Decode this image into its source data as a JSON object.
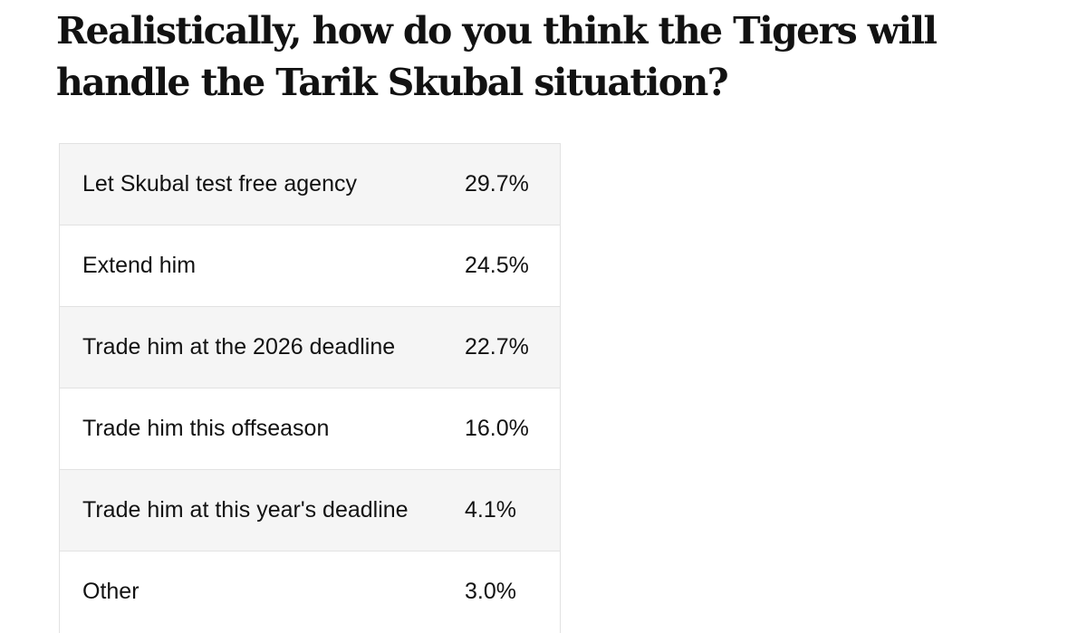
{
  "headline": "Realistically, how do you think the Tigers will handle the Tarik Skubal situation?",
  "chart_data": {
    "type": "table",
    "title": "Realistically, how do you think the Tigers will handle the Tarik Skubal situation?",
    "categories": [
      "Let Skubal test free agency",
      "Extend him",
      "Trade him at the 2026 deadline",
      "Trade him this offseason",
      "Trade him at this year's deadline",
      "Other"
    ],
    "values": [
      29.7,
      24.5,
      22.7,
      16.0,
      4.1,
      3.0
    ],
    "rows": [
      {
        "label": "Let Skubal test free agency",
        "value": 29.7,
        "display": "29.7%"
      },
      {
        "label": "Extend him",
        "value": 24.5,
        "display": "24.5%"
      },
      {
        "label": "Trade him at the 2026 deadline",
        "value": 22.7,
        "display": "22.7%"
      },
      {
        "label": "Trade him this offseason",
        "value": 16.0,
        "display": "16.0%"
      },
      {
        "label": "Trade him at this year's deadline",
        "value": 4.1,
        "display": "4.1%"
      },
      {
        "label": "Other",
        "value": 3.0,
        "display": "3.0%"
      }
    ],
    "colors": {
      "text": "#121212",
      "row_shaded": "#f5f5f5",
      "row_plain": "#ffffff",
      "border": "#e2e2e2"
    }
  }
}
